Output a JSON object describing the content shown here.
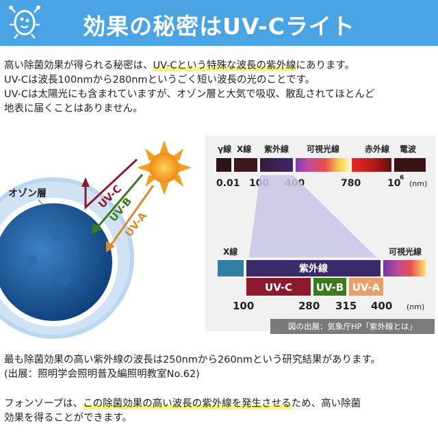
{
  "header": {
    "title": "効果の秘密はUV-Cライト",
    "icon": "germ-icon",
    "bg_color": "#4aa3e3"
  },
  "intro": {
    "line1_pre": "高い除菌効果が得られる秘密は、",
    "line1_hl": "UV-Cという特殊な波長の紫外線",
    "line1_post": "にあります。",
    "line2": "UV-Cは波長100nmから280nmというごく短い波長の光のことです。",
    "line3": "UV-Cは太陽光にも含まれていますが、オゾン層と大気で吸収、散乱されてほとんど",
    "line4": "地表に届くことはありません。"
  },
  "earth_diagram": {
    "ozone_label": "オゾン層",
    "rays": [
      {
        "label": "UV-C",
        "color": "#8b1a2e"
      },
      {
        "label": "UV-B",
        "color": "#3d7a1e"
      },
      {
        "label": "UV-A",
        "color": "#d98a2e"
      }
    ],
    "sun_color": "#f0a020"
  },
  "spectrum": {
    "top_labels": [
      "γ線",
      "X線",
      "紫外線",
      "可視光線",
      "赤外線",
      "電波"
    ],
    "top_ticks": [
      "0.01",
      "100",
      "400",
      "780",
      "10"
    ],
    "top_tick_superscript": "6",
    "top_unit": "(nm)",
    "bottom_labels": {
      "xray": "X線",
      "uv": "紫外線",
      "visible": "可視光線"
    },
    "uv_bands": [
      {
        "label": "UV-C",
        "color": "#8b1a2e"
      },
      {
        "label": "UV-B",
        "color": "#3d7a1e"
      },
      {
        "label": "UV-A",
        "color": "#e8a06a"
      }
    ],
    "bottom_ticks": [
      "100",
      "280",
      "315",
      "400"
    ],
    "bottom_unit": "(nm)"
  },
  "source_badge": "図の出展：気象庁HP「紫外線とは」",
  "research": {
    "line1": "最も除菌効果の高い紫外線の波長は250nmから260nmという研究結果があります。",
    "line2": "(出展：照明学会照明普及編照明教室No.62)"
  },
  "closing": {
    "line1_pre": "フォンソープは、",
    "line1_hl": "この除菌効果の高い波長の紫外線を発生させる",
    "line1_post": "ため、高い除菌",
    "line2": "効果を得ることができます。"
  }
}
